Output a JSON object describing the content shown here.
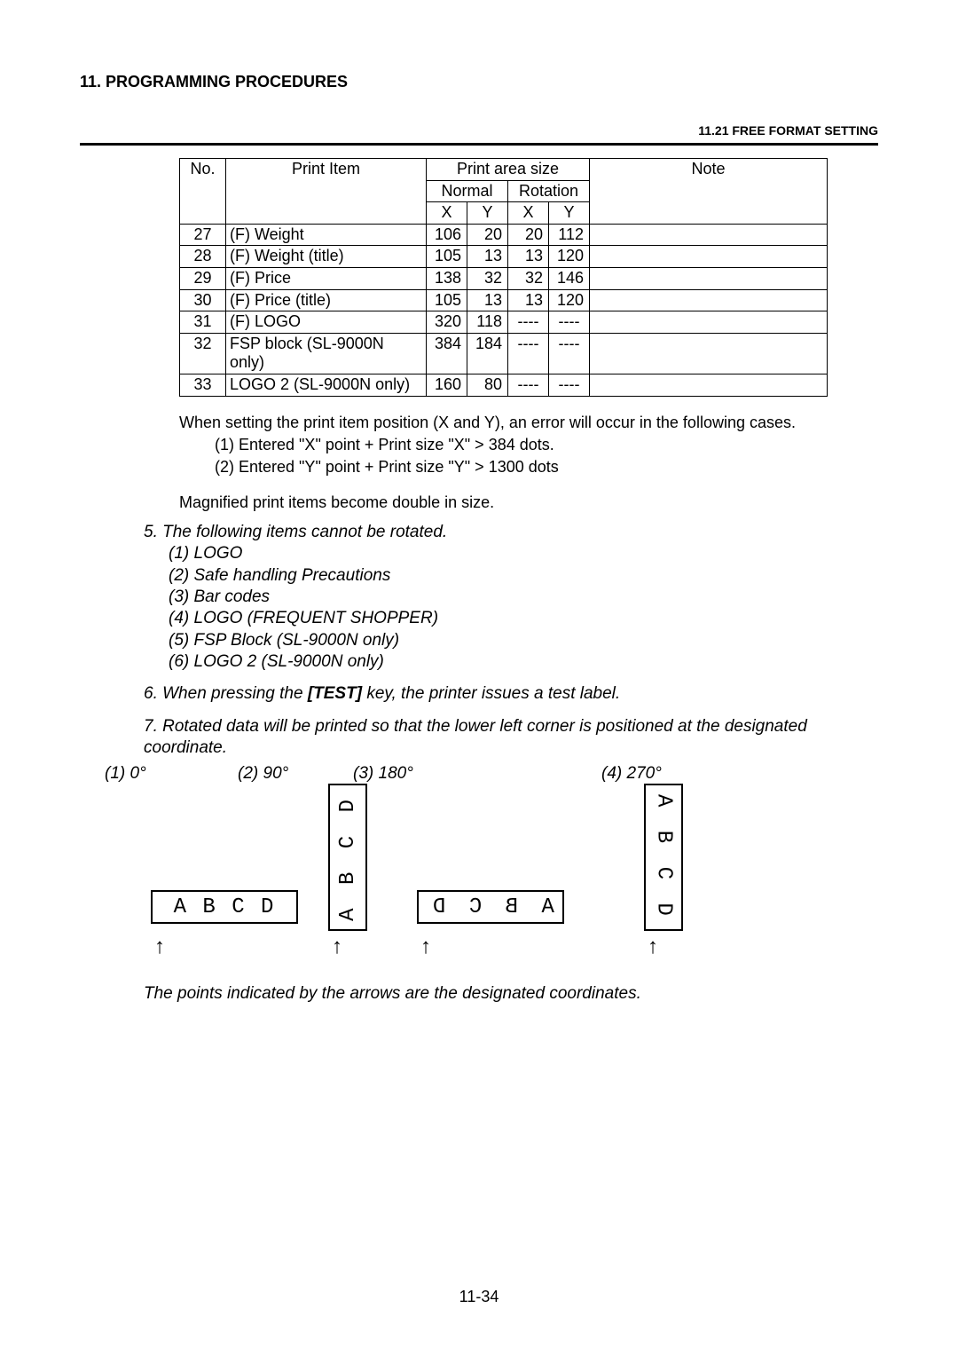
{
  "section": "11.  PROGRAMMING PROCEDURES",
  "subsection": "11.21 FREE FORMAT SETTING",
  "table": {
    "headers": {
      "no": "No.",
      "item": "Print Item",
      "area": "Print area size",
      "normal": "Normal",
      "rotation": "Rotation",
      "x": "X",
      "y": "Y",
      "note": "Note"
    },
    "rows": [
      {
        "no": "27",
        "item": "(F) Weight",
        "nx": "106",
        "ny": "20",
        "rx": "20",
        "ry": "112",
        "note": ""
      },
      {
        "no": "28",
        "item": "(F) Weight (title)",
        "nx": "105",
        "ny": "13",
        "rx": "13",
        "ry": "120",
        "note": ""
      },
      {
        "no": "29",
        "item": "(F) Price",
        "nx": "138",
        "ny": "32",
        "rx": "32",
        "ry": "146",
        "note": ""
      },
      {
        "no": "30",
        "item": "(F) Price (title)",
        "nx": "105",
        "ny": "13",
        "rx": "13",
        "ry": "120",
        "note": ""
      },
      {
        "no": "31",
        "item": "(F) LOGO",
        "nx": "320",
        "ny": "118",
        "rx": "----",
        "ry": "----",
        "note": ""
      },
      {
        "no": "32",
        "item": "FSP block (SL-9000N only)",
        "nx": "384",
        "ny": "184",
        "rx": "----",
        "ry": "----",
        "note": ""
      },
      {
        "no": "33",
        "item": "LOGO 2 (SL-9000N only)",
        "nx": "160",
        "ny": "80",
        "rx": "----",
        "ry": "----",
        "note": ""
      }
    ]
  },
  "para1": "When setting the print item position (X and Y), an error will occur in the following cases.",
  "para1a": "(1) Entered \"X\" point + Print size \"X\" > 384 dots.",
  "para1b": "(2) Entered \"Y\" point + Print size \"Y\" > 1300 dots",
  "para2": "Magnified print items become double in size.",
  "item5": "5.  The following items cannot be rotated.",
  "item5_1": "(1) LOGO",
  "item5_2": "(2) Safe handling Precautions",
  "item5_3": "(3) Bar codes",
  "item5_4": "(4) LOGO (FREQUENT SHOPPER)",
  "item5_5": "(5) FSP Block (SL-9000N only)",
  "item5_6": "(6) LOGO 2 (SL-9000N only)",
  "item6_pre": "6.  When pressing the ",
  "item6_key": "[TEST]",
  "item6_post": " key, the printer issues a test label.",
  "item7": "7.  Rotated data will be printed so that the lower left corner is positioned at the designated coordinate.",
  "rot": {
    "r1": "(1) 0°",
    "r2": "(2) 90°",
    "r3": "(3) 180°",
    "r4": "(4) 270°"
  },
  "letters": "A B C D",
  "caption": "The points indicated by the arrows are the designated coordinates.",
  "pageno": "11-34"
}
